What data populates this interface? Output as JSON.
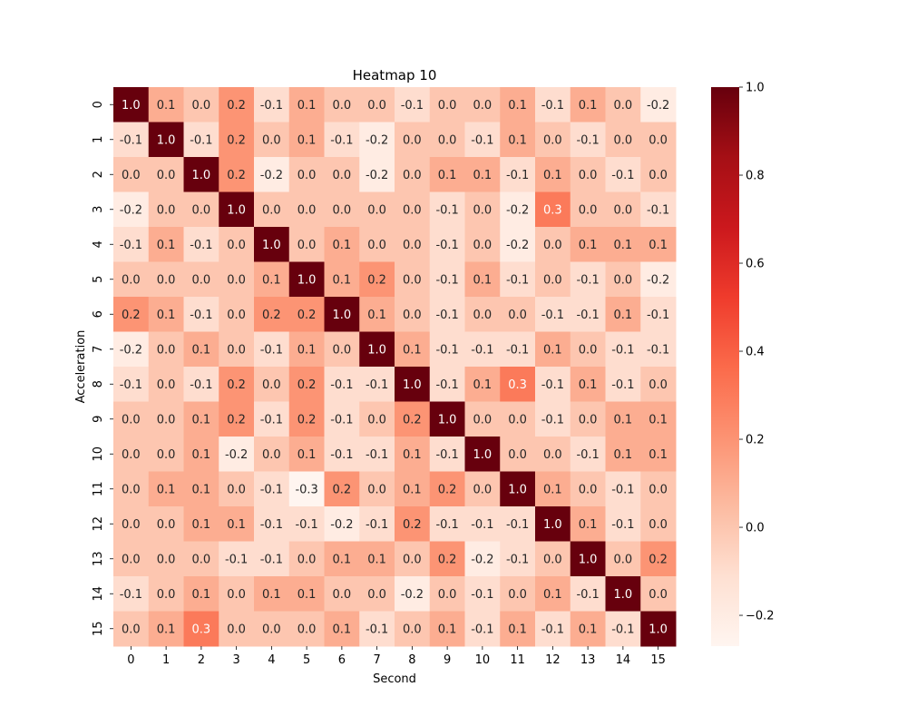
{
  "chart_data": {
    "type": "heatmap",
    "title": "Heatmap 10",
    "xlabel": "Second",
    "ylabel": "Acceleration",
    "x_categories": [
      "0",
      "1",
      "2",
      "3",
      "4",
      "5",
      "6",
      "7",
      "8",
      "9",
      "10",
      "11",
      "12",
      "13",
      "14",
      "15"
    ],
    "y_categories": [
      "0",
      "1",
      "2",
      "3",
      "4",
      "5",
      "6",
      "7",
      "8",
      "9",
      "10",
      "11",
      "12",
      "13",
      "14",
      "15"
    ],
    "values": [
      [
        1.0,
        0.1,
        0.0,
        0.2,
        -0.1,
        0.1,
        0.0,
        -0.0,
        -0.1,
        0.0,
        -0.0,
        0.1,
        -0.1,
        0.1,
        0.0,
        -0.2
      ],
      [
        -0.1,
        1.0,
        -0.1,
        0.2,
        0.0,
        0.1,
        -0.1,
        -0.2,
        0.0,
        0.0,
        -0.1,
        0.1,
        -0.0,
        -0.1,
        -0.0,
        0.0
      ],
      [
        -0.0,
        -0.0,
        1.0,
        0.2,
        -0.2,
        -0.0,
        0.0,
        -0.2,
        0.0,
        0.1,
        0.1,
        -0.1,
        0.1,
        0.0,
        -0.1,
        -0.0
      ],
      [
        -0.2,
        -0.0,
        0.0,
        1.0,
        0.0,
        -0.0,
        -0.0,
        -0.0,
        -0.0,
        -0.1,
        -0.0,
        -0.2,
        0.3,
        0.0,
        -0.0,
        -0.1
      ],
      [
        -0.1,
        0.1,
        -0.1,
        -0.0,
        1.0,
        -0.0,
        0.1,
        0.0,
        -0.0,
        -0.1,
        -0.0,
        -0.2,
        -0.0,
        0.1,
        0.1,
        0.1
      ],
      [
        -0.0,
        0.0,
        -0.0,
        0.0,
        0.1,
        1.0,
        0.1,
        0.2,
        0.0,
        -0.1,
        0.1,
        -0.1,
        0.0,
        -0.1,
        -0.0,
        -0.2
      ],
      [
        0.2,
        0.1,
        -0.1,
        0.0,
        0.2,
        0.2,
        1.0,
        0.1,
        0.0,
        -0.1,
        0.0,
        -0.0,
        -0.1,
        -0.1,
        0.1,
        -0.1
      ],
      [
        -0.2,
        0.0,
        0.1,
        -0.0,
        -0.1,
        0.1,
        -0.0,
        1.0,
        0.1,
        -0.1,
        -0.1,
        -0.1,
        0.1,
        0.0,
        -0.1,
        -0.1
      ],
      [
        -0.1,
        0.0,
        -0.1,
        0.2,
        0.0,
        0.2,
        -0.1,
        -0.1,
        1.0,
        -0.1,
        0.1,
        0.3,
        -0.1,
        0.1,
        -0.1,
        -0.0
      ],
      [
        0.0,
        0.0,
        0.1,
        0.2,
        -0.1,
        0.2,
        -0.1,
        -0.0,
        0.2,
        1.0,
        -0.0,
        0.0,
        -0.1,
        -0.0,
        0.1,
        0.1
      ],
      [
        0.0,
        0.0,
        0.1,
        -0.2,
        0.0,
        0.1,
        -0.1,
        -0.1,
        0.1,
        -0.1,
        1.0,
        -0.0,
        -0.0,
        -0.1,
        0.1,
        0.1
      ],
      [
        -0.0,
        0.1,
        0.1,
        0.0,
        -0.1,
        -0.3,
        0.2,
        -0.0,
        0.1,
        0.2,
        -0.0,
        1.0,
        0.1,
        -0.0,
        -0.1,
        0.0
      ],
      [
        0.0,
        0.0,
        0.1,
        0.1,
        -0.1,
        -0.1,
        -0.2,
        -0.1,
        0.2,
        -0.1,
        -0.1,
        -0.1,
        1.0,
        0.1,
        -0.1,
        -0.0
      ],
      [
        0.0,
        -0.0,
        0.0,
        -0.1,
        -0.1,
        -0.0,
        0.1,
        0.1,
        0.0,
        0.2,
        -0.2,
        -0.1,
        -0.0,
        1.0,
        -0.0,
        0.2
      ],
      [
        -0.1,
        -0.0,
        0.1,
        0.0,
        0.1,
        0.1,
        0.0,
        -0.0,
        -0.2,
        0.0,
        -0.1,
        -0.0,
        0.1,
        -0.1,
        1.0,
        0.0
      ],
      [
        -0.0,
        0.1,
        0.3,
        -0.0,
        0.0,
        -0.0,
        0.1,
        -0.1,
        -0.0,
        0.1,
        -0.1,
        0.1,
        -0.1,
        0.1,
        -0.1,
        1.0
      ]
    ],
    "color_range": [
      -0.27,
      1.0
    ],
    "colormap": "Reds",
    "colorbar_ticks": [
      "1.0",
      "0.8",
      "0.6",
      "0.4",
      "0.2",
      "0.0",
      "−0.2"
    ],
    "colorbar_tick_values": [
      1.0,
      0.8,
      0.6,
      0.4,
      0.2,
      0.0,
      -0.2
    ],
    "grid": false,
    "colorbar_position": "right"
  }
}
